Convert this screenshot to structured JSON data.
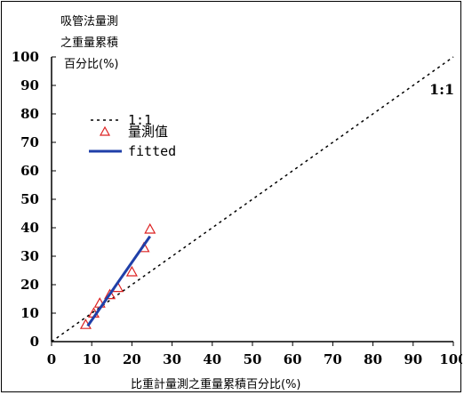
{
  "chart_data": {
    "type": "scatter",
    "xlabel": "比重計量測之重量累積百分比(%)",
    "ylabel_lines": [
      "吸管法量測",
      "之重量累積",
      "百分比(%)"
    ],
    "xlim": [
      0,
      100
    ],
    "ylim": [
      0,
      100
    ],
    "x_ticks": [
      0,
      10,
      20,
      30,
      40,
      50,
      60,
      70,
      80,
      90,
      100
    ],
    "y_ticks": [
      0,
      10,
      20,
      30,
      40,
      50,
      60,
      70,
      80,
      90,
      100
    ],
    "grid": false,
    "legend_position": "top-left",
    "legend": [
      "1:1",
      "量測值",
      "fitted"
    ],
    "annotation": "1:1",
    "series": [
      {
        "name": "1:1",
        "kind": "dashed-line",
        "color": "#000000",
        "x": [
          0,
          100
        ],
        "y": [
          0,
          100
        ]
      },
      {
        "name": "量測值",
        "kind": "markers",
        "marker": "triangle-open",
        "color": "#dd2222",
        "x": [
          8.5,
          10.5,
          12,
          14.5,
          16.5,
          20,
          23,
          24.5
        ],
        "y": [
          6,
          10,
          13.5,
          16.5,
          19,
          24.5,
          33,
          39.5
        ]
      },
      {
        "name": "fitted",
        "kind": "line",
        "color": "#1f3fa8",
        "x": [
          9,
          24.5
        ],
        "y": [
          5.5,
          37
        ]
      }
    ]
  }
}
